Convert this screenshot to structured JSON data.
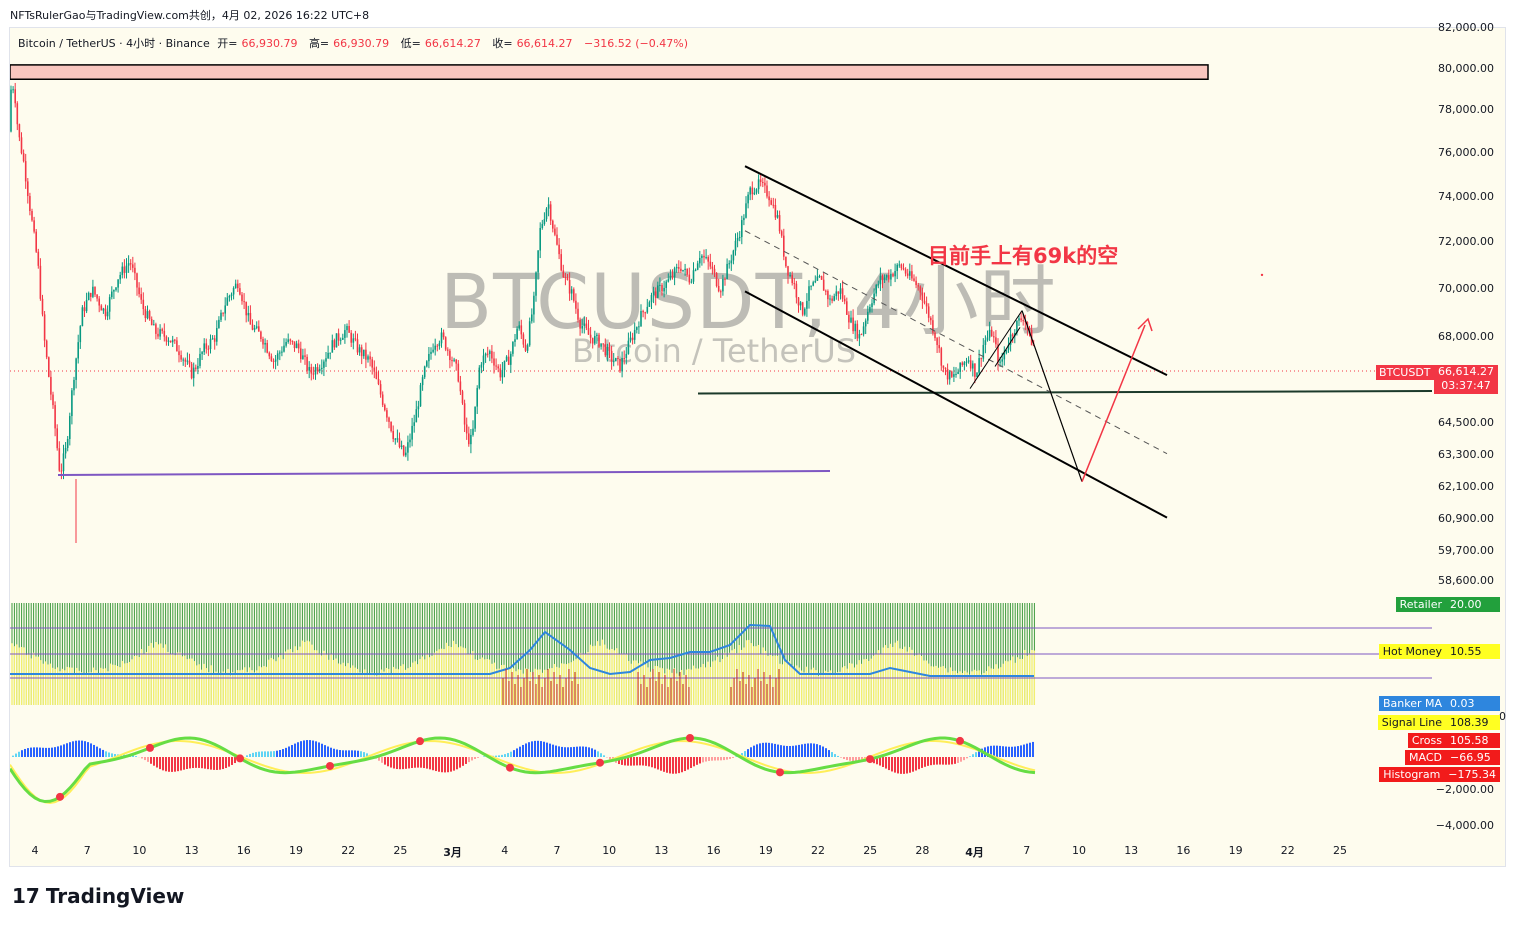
{
  "top_caption": "NFTsRulerGao与TradingView.com共创，4月 02, 2026 16:22 UTC+8",
  "header": {
    "symbol": "Bitcoin / TetherUS · 4小时 · Binance",
    "open_label": "开=",
    "open": "66,930.79",
    "high_label": "高=",
    "high": "66,930.79",
    "low_label": "低=",
    "low": "66,614.27",
    "close_label": "收=",
    "close": "66,614.27",
    "change": "−316.52 (−0.47%)"
  },
  "watermark": {
    "line1": "BTCUSDT, 4小时",
    "line2": "Bitcoin / TetherUS"
  },
  "annotation": "目前手上有69k的空",
  "price_axis": [
    {
      "label": "82,000.00",
      "v": 82000
    },
    {
      "label": "80,000.00",
      "v": 80000
    },
    {
      "label": "78,000.00",
      "v": 78000
    },
    {
      "label": "76,000.00",
      "v": 76000
    },
    {
      "label": "74,000.00",
      "v": 74000
    },
    {
      "label": "72,000.00",
      "v": 72000
    },
    {
      "label": "70,000.00",
      "v": 70000
    },
    {
      "label": "68,000.00",
      "v": 68000
    },
    {
      "label": "64,500.00",
      "v": 64500
    },
    {
      "label": "63,300.00",
      "v": 63300
    },
    {
      "label": "62,100.00",
      "v": 62100
    },
    {
      "label": "60,900.00",
      "v": 60900
    },
    {
      "label": "59,700.00",
      "v": 59700
    },
    {
      "label": "58,600.00",
      "v": 58600
    }
  ],
  "macd_axis": [
    {
      "label": "0",
      "v": 0
    },
    {
      "label": "−2,000.00",
      "v": -2000
    },
    {
      "label": "−4,000.00",
      "v": -4000
    }
  ],
  "current_price": {
    "symbol": "BTCUSDT",
    "price": "66,614.27",
    "countdown": "03:37:47"
  },
  "time_axis": [
    {
      "label": "4",
      "bold": false
    },
    {
      "label": "7",
      "bold": false
    },
    {
      "label": "10",
      "bold": false
    },
    {
      "label": "13",
      "bold": false
    },
    {
      "label": "16",
      "bold": false
    },
    {
      "label": "19",
      "bold": false
    },
    {
      "label": "22",
      "bold": false
    },
    {
      "label": "25",
      "bold": false
    },
    {
      "label": "3月",
      "bold": true
    },
    {
      "label": "4",
      "bold": false
    },
    {
      "label": "7",
      "bold": false
    },
    {
      "label": "10",
      "bold": false
    },
    {
      "label": "13",
      "bold": false
    },
    {
      "label": "16",
      "bold": false
    },
    {
      "label": "19",
      "bold": false
    },
    {
      "label": "22",
      "bold": false
    },
    {
      "label": "25",
      "bold": false
    },
    {
      "label": "28",
      "bold": false
    },
    {
      "label": "4月",
      "bold": true
    },
    {
      "label": "7",
      "bold": false
    },
    {
      "label": "10",
      "bold": false
    },
    {
      "label": "13",
      "bold": false
    },
    {
      "label": "16",
      "bold": false
    },
    {
      "label": "19",
      "bold": false
    },
    {
      "label": "22",
      "bold": false
    },
    {
      "label": "25",
      "bold": false
    }
  ],
  "indicator_tags": [
    {
      "name": "Retailer",
      "value": "20.00",
      "color": "#22a03c",
      "text": "#ffffff"
    },
    {
      "name": "Hot Money",
      "value": "10.55",
      "color": "#ffff22",
      "text": "#131722"
    },
    {
      "name": "Banker MA",
      "value": "0.03",
      "color": "#2e86de",
      "text": "#ffffff"
    },
    {
      "name": "Signal Line",
      "value": "108.39",
      "color": "#ffff22",
      "text": "#131722"
    },
    {
      "name": "Cross",
      "value": "105.58",
      "color": "#f21b1b",
      "text": "#ffffff"
    },
    {
      "name": "MACD",
      "value": "−66.95",
      "color": "#f21b1b",
      "text": "#ffffff"
    },
    {
      "name": "Histogram",
      "value": "−175.34",
      "color": "#f21b1b",
      "text": "#ffffff"
    }
  ],
  "chart_data": {
    "type": "candlestick",
    "ylim": [
      57800,
      82200
    ],
    "price_path": [
      [
        0,
        77000
      ],
      [
        1,
        79000
      ],
      [
        4,
        79200
      ],
      [
        8,
        77000
      ],
      [
        14,
        75500
      ],
      [
        20,
        73500
      ],
      [
        28,
        71000
      ],
      [
        34,
        68000
      ],
      [
        40,
        66000
      ],
      [
        46,
        64000
      ],
      [
        50,
        62600
      ],
      [
        56,
        63500
      ],
      [
        64,
        66500
      ],
      [
        72,
        69000
      ],
      [
        82,
        70000
      ],
      [
        95,
        69000
      ],
      [
        108,
        70500
      ],
      [
        120,
        71200
      ],
      [
        132,
        69300
      ],
      [
        145,
        68200
      ],
      [
        158,
        68000
      ],
      [
        170,
        67400
      ],
      [
        182,
        66500
      ],
      [
        194,
        67500
      ],
      [
        205,
        68000
      ],
      [
        216,
        69500
      ],
      [
        228,
        70300
      ],
      [
        240,
        68500
      ],
      [
        252,
        68000
      ],
      [
        264,
        67000
      ],
      [
        276,
        67800
      ],
      [
        288,
        67600
      ],
      [
        300,
        66500
      ],
      [
        312,
        67000
      ],
      [
        324,
        67800
      ],
      [
        336,
        68300
      ],
      [
        348,
        67500
      ],
      [
        360,
        67000
      ],
      [
        372,
        65500
      ],
      [
        384,
        64000
      ],
      [
        395,
        63200
      ],
      [
        405,
        64700
      ],
      [
        414,
        66500
      ],
      [
        424,
        67800
      ],
      [
        432,
        68000
      ],
      [
        440,
        67300
      ],
      [
        448,
        66500
      ],
      [
        456,
        64000
      ],
      [
        462,
        63800
      ],
      [
        470,
        67000
      ],
      [
        480,
        67400
      ],
      [
        490,
        66500
      ],
      [
        500,
        67200
      ],
      [
        508,
        68500
      ],
      [
        516,
        67500
      ],
      [
        524,
        69500
      ],
      [
        530,
        72500
      ],
      [
        538,
        73800
      ],
      [
        546,
        72000
      ],
      [
        554,
        70500
      ],
      [
        562,
        69800
      ],
      [
        570,
        68600
      ],
      [
        580,
        68000
      ],
      [
        590,
        67800
      ],
      [
        600,
        67200
      ],
      [
        610,
        66800
      ],
      [
        620,
        67800
      ],
      [
        630,
        68800
      ],
      [
        640,
        69600
      ],
      [
        650,
        70000
      ],
      [
        660,
        70400
      ],
      [
        670,
        71000
      ],
      [
        680,
        70400
      ],
      [
        690,
        71500
      ],
      [
        700,
        71000
      ],
      [
        710,
        70000
      ],
      [
        720,
        71200
      ],
      [
        730,
        72500
      ],
      [
        740,
        74300
      ],
      [
        750,
        74600
      ],
      [
        760,
        74000
      ],
      [
        768,
        73000
      ],
      [
        776,
        71000
      ],
      [
        784,
        70200
      ],
      [
        792,
        69000
      ],
      [
        800,
        70000
      ],
      [
        810,
        70400
      ],
      [
        820,
        69500
      ],
      [
        830,
        70000
      ],
      [
        840,
        68700
      ],
      [
        850,
        68000
      ],
      [
        860,
        69400
      ],
      [
        870,
        70400
      ],
      [
        880,
        70600
      ],
      [
        890,
        71000
      ],
      [
        900,
        70500
      ],
      [
        910,
        70000
      ],
      [
        918,
        69000
      ],
      [
        926,
        68000
      ],
      [
        934,
        66600
      ],
      [
        942,
        66300
      ],
      [
        950,
        66700
      ],
      [
        958,
        67200
      ],
      [
        966,
        66500
      ],
      [
        974,
        67800
      ],
      [
        982,
        68200
      ],
      [
        990,
        66800
      ],
      [
        998,
        67800
      ],
      [
        1006,
        68500
      ],
      [
        1014,
        68900
      ],
      [
        1020,
        68000
      ],
      [
        1026,
        67400
      ],
      [
        1032,
        66614
      ]
    ],
    "lines": [
      {
        "name": "resistance-box",
        "type": "zone",
        "from": 79500,
        "to": 80200
      },
      {
        "name": "purple-support",
        "y1": 62550,
        "y2": 62700
      },
      {
        "name": "green-support",
        "y1": 65700,
        "y2": 65800
      },
      {
        "name": "channel-top",
        "y1": 75400,
        "y2": 66450
      },
      {
        "name": "channel-mid",
        "y1": 72500,
        "y2": 63350
      },
      {
        "name": "channel-bottom",
        "y1": 69900,
        "y2": 60950
      }
    ],
    "projection": {
      "points": [
        69100,
        62300,
        68500
      ]
    }
  }
}
